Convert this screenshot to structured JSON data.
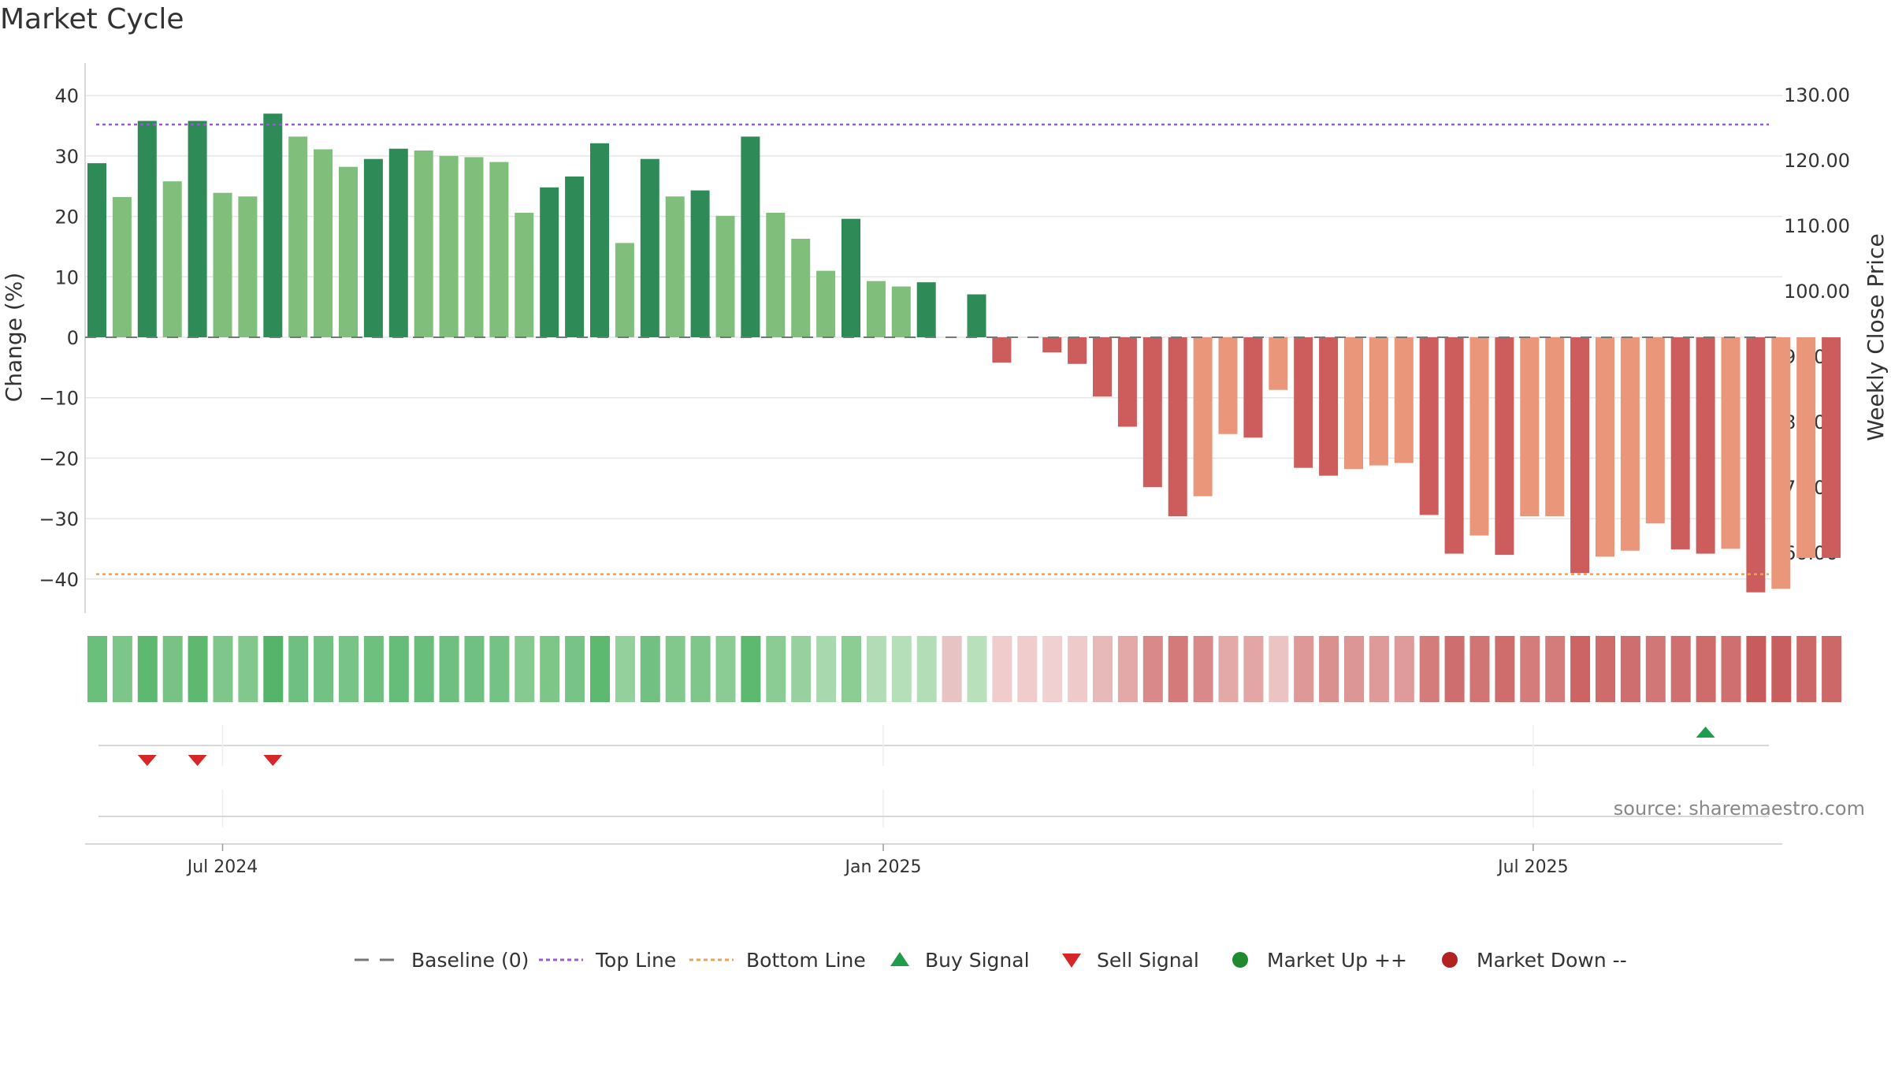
{
  "chart_data": {
    "type": "bar",
    "title": "Market Cycle",
    "ylabel": "Change (%)",
    "y2label": "Weekly Close Price",
    "ylim": [
      -45,
      45
    ],
    "y2lim": [
      50,
      135
    ],
    "yticks": [
      40,
      30,
      20,
      10,
      0,
      -10,
      -20,
      -30,
      -40
    ],
    "ytick_labels": [
      "40",
      "30",
      "20",
      "10",
      "0",
      "−10",
      "−20",
      "−30",
      "−40"
    ],
    "y2ticks": [
      "130.00",
      "120.00",
      "110.00",
      "100.00",
      "90.00",
      "80.00",
      "70.00",
      "60.00"
    ],
    "y2tick_values": [
      130,
      120,
      110,
      100,
      90,
      80,
      70,
      60
    ],
    "x_ticks": [
      {
        "label": "Jul 2024",
        "date": "2024-07-01"
      },
      {
        "label": "Jan 2025",
        "date": "2025-01-01"
      },
      {
        "label": "Jul 2025",
        "date": "2025-07-01"
      }
    ],
    "x_start_date": "2024-05-27",
    "values": [
      28.8,
      23.2,
      35.8,
      25.8,
      35.8,
      23.9,
      23.3,
      37.0,
      33.2,
      31.1,
      28.2,
      29.5,
      31.2,
      30.9,
      30.0,
      29.8,
      29.0,
      20.6,
      24.8,
      26.6,
      32.1,
      15.6,
      29.5,
      23.3,
      24.3,
      20.1,
      33.2,
      20.6,
      16.3,
      11.0,
      19.6,
      9.3,
      8.4,
      9.1,
      null,
      7.1,
      -4.2,
      null,
      -2.5,
      -4.4,
      -9.8,
      -14.8,
      -24.8,
      -29.6,
      -26.3,
      -16.0,
      -16.6,
      -8.7,
      -21.6,
      -22.9,
      -21.8,
      -21.2,
      -20.8,
      -29.4,
      -35.8,
      -32.8,
      -36.0,
      -29.6,
      -29.6,
      -39.0,
      -36.3,
      -35.3,
      -30.8,
      -35.1,
      -35.8,
      -35.0,
      -42.2,
      -41.6,
      -36.5,
      -36.5
    ],
    "bar_colors": [
      "#2e8b57",
      "#7fbf7b",
      "#2e8b57",
      "#7fbf7b",
      "#2e8b57",
      "#7fbf7b",
      "#7fbf7b",
      "#2e8b57",
      "#7fbf7b",
      "#7fbf7b",
      "#7fbf7b",
      "#2e8b57",
      "#2e8b57",
      "#7fbf7b",
      "#7fbf7b",
      "#7fbf7b",
      "#7fbf7b",
      "#7fbf7b",
      "#2e8b57",
      "#2e8b57",
      "#2e8b57",
      "#7fbf7b",
      "#2e8b57",
      "#7fbf7b",
      "#2e8b57",
      "#7fbf7b",
      "#2e8b57",
      "#7fbf7b",
      "#7fbf7b",
      "#7fbf7b",
      "#2e8b57",
      "#7fbf7b",
      "#7fbf7b",
      "#2e8b57",
      null,
      "#2e8b57",
      "#cd5c5c",
      null,
      "#cd5c5c",
      "#cd5c5c",
      "#cd5c5c",
      "#cd5c5c",
      "#cd5c5c",
      "#cd5c5c",
      "#e9967a",
      "#e9967a",
      "#cd5c5c",
      "#e9967a",
      "#cd5c5c",
      "#cd5c5c",
      "#e9967a",
      "#e9967a",
      "#e9967a",
      "#cd5c5c",
      "#cd5c5c",
      "#e9967a",
      "#cd5c5c",
      "#e9967a",
      "#e9967a",
      "#cd5c5c",
      "#e9967a",
      "#e9967a",
      "#e9967a",
      "#cd5c5c",
      "#cd5c5c",
      "#e9967a",
      "#cd5c5c",
      "#e9967a",
      "#e9967a",
      "#cd5c5c"
    ],
    "heat_colors": [
      "#6abf7b",
      "#7cc688",
      "#5db870",
      "#76c383",
      "#5db870",
      "#7ec689",
      "#82c88c",
      "#55b36a",
      "#6fc080",
      "#73c283",
      "#78c486",
      "#6ec07f",
      "#66bc79",
      "#6abe7c",
      "#6fc080",
      "#70c081",
      "#74c284",
      "#86ca8f",
      "#7cc688",
      "#78c486",
      "#5db870",
      "#94d09b",
      "#72c182",
      "#82c88c",
      "#7ec689",
      "#8acc93",
      "#5db870",
      "#8acc93",
      "#98d19f",
      "#a8d8ad",
      "#8ccd94",
      "#b1dcb5",
      "#b5dfb9",
      "#b3ddb6",
      "#e8c3c3",
      "#b7e0bb",
      "#f0cccc",
      "#f0cccc",
      "#f0d0d0",
      "#eecaca",
      "#e8b9b9",
      "#e3a9a9",
      "#d98989",
      "#d47a7a",
      "#d98989",
      "#e3a9a9",
      "#e2a6a6",
      "#ecc3c3",
      "#de9898",
      "#db9090",
      "#dd9696",
      "#de9999",
      "#df9b9b",
      "#d47b7b",
      "#cf6e6e",
      "#d17474",
      "#cf6d6d",
      "#d47b7b",
      "#d47b7b",
      "#cc6464",
      "#ce6b6b",
      "#cf6e6e",
      "#d27777",
      "#cf6f6f",
      "#ce6c6c",
      "#cf6f6f",
      "#c85c5c",
      "#c95e5e",
      "#cd6868",
      "#cd6868"
    ],
    "top_line": 35.2,
    "bottom_line": -39.2,
    "baseline": 0,
    "buy_signals": [
      {
        "index": 64
      }
    ],
    "sell_signals": [
      {
        "index": 2
      },
      {
        "index": 4
      },
      {
        "index": 7
      }
    ],
    "source": "source: sharemaestro.com",
    "legend": [
      {
        "label": "Baseline (0)",
        "marker": "dash-gray",
        "color": "#777777"
      },
      {
        "label": "Top Line",
        "marker": "dot-purple",
        "color": "#9b59d0"
      },
      {
        "label": "Bottom Line",
        "marker": "dot-orange",
        "color": "#f0a050"
      },
      {
        "label": "Buy Signal",
        "marker": "triangle-up",
        "color": "#1e9e4a"
      },
      {
        "label": "Sell Signal",
        "marker": "triangle-down",
        "color": "#d62728"
      },
      {
        "label": "Market Up ++",
        "marker": "circle",
        "color": "#1e8c2e"
      },
      {
        "label": "Market Down --",
        "marker": "circle",
        "color": "#b22222"
      }
    ],
    "legend_position": "bottom-center",
    "grid": true
  }
}
